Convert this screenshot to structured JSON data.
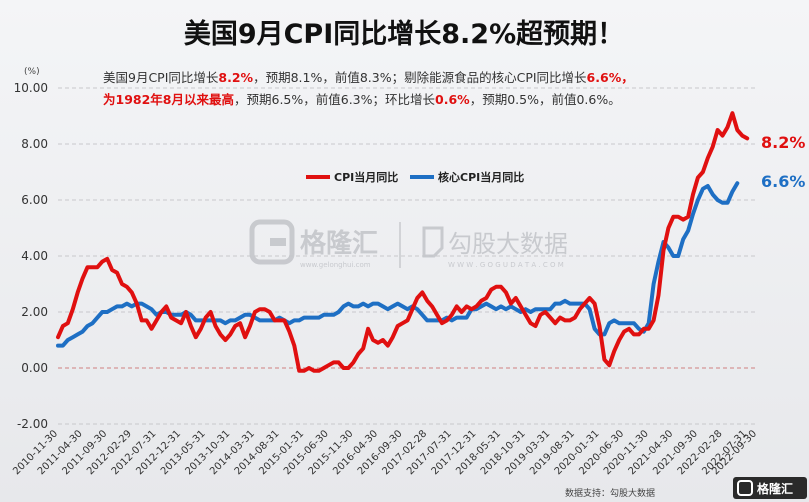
{
  "chart_data": {
    "type": "line",
    "title": "美国9月CPI同比增长8.2%超预期！",
    "yunit": "(%)",
    "ylim": [
      -2,
      10
    ],
    "yticks": [
      "10.00",
      "8.00",
      "6.00",
      "4.00",
      "2.00",
      "0.00",
      "-2.00"
    ],
    "ytick_values": [
      10,
      8,
      6,
      4,
      2,
      0,
      -2
    ],
    "grid": "horizontal-dashed",
    "legend_position": "top-center",
    "x_tick_labels": [
      "2010-11-30",
      "2011-04-30",
      "2011-09-30",
      "2012-02-29",
      "2012-07-31",
      "2012-12-31",
      "2013-05-31",
      "2013-10-31",
      "2014-03-31",
      "2014-08-31",
      "2015-01-31",
      "2015-06-30",
      "2015-11-30",
      "2016-04-30",
      "2016-09-30",
      "2017-02-28",
      "2017-07-31",
      "2017-12-31",
      "2018-05-31",
      "2018-10-31",
      "2019-03-31",
      "2019-08-31",
      "2020-01-31",
      "2020-06-30",
      "2020-11-30",
      "2021-04-30",
      "2021-09-30",
      "2022-02-28",
      "2022-07-31",
      "2022-09-30"
    ],
    "x_tick_index": [
      0,
      5,
      10,
      15,
      20,
      25,
      30,
      35,
      40,
      45,
      50,
      55,
      60,
      65,
      70,
      75,
      80,
      85,
      90,
      95,
      100,
      105,
      110,
      115,
      120,
      125,
      130,
      135,
      140,
      142
    ],
    "x_count": 143,
    "series": [
      {
        "name": "CPI当月同比",
        "color": "#e01010",
        "end_label": "8.2%",
        "values": [
          1.1,
          1.5,
          1.6,
          2.1,
          2.7,
          3.2,
          3.6,
          3.6,
          3.6,
          3.8,
          3.9,
          3.5,
          3.4,
          3.0,
          2.9,
          2.7,
          2.3,
          1.7,
          1.7,
          1.4,
          1.7,
          2.0,
          2.2,
          1.8,
          1.7,
          1.6,
          2.0,
          1.5,
          1.1,
          1.4,
          1.8,
          2.0,
          1.5,
          1.2,
          1.0,
          1.2,
          1.5,
          1.6,
          1.1,
          1.5,
          2.0,
          2.1,
          2.1,
          2.0,
          1.7,
          1.7,
          1.7,
          1.3,
          0.8,
          -0.1,
          -0.1,
          0.0,
          -0.1,
          -0.1,
          0.0,
          0.1,
          0.2,
          0.2,
          0.0,
          0.0,
          0.2,
          0.5,
          0.7,
          1.4,
          1.0,
          0.9,
          1.0,
          0.8,
          1.1,
          1.5,
          1.6,
          1.7,
          2.1,
          2.5,
          2.7,
          2.4,
          2.2,
          1.9,
          1.6,
          1.7,
          1.9,
          2.2,
          2.0,
          2.2,
          2.1,
          2.2,
          2.4,
          2.5,
          2.8,
          2.9,
          2.9,
          2.7,
          2.3,
          2.5,
          2.2,
          1.9,
          1.6,
          1.5,
          1.9,
          2.0,
          1.8,
          1.6,
          1.8,
          1.7,
          1.7,
          1.8,
          2.1,
          2.3,
          2.5,
          2.3,
          1.5,
          0.3,
          0.1,
          0.6,
          1.0,
          1.3,
          1.4,
          1.2,
          1.2,
          1.4,
          1.4,
          1.7,
          2.6,
          4.2,
          5.0,
          5.4,
          5.4,
          5.3,
          5.4,
          6.2,
          6.8,
          7.0,
          7.5,
          7.9,
          8.5,
          8.3,
          8.6,
          9.1,
          8.5,
          8.3,
          8.2
        ]
      },
      {
        "name": "核心CPI当月同比",
        "color": "#1e6fc4",
        "end_label": "6.6%",
        "values": [
          0.8,
          0.8,
          1.0,
          1.1,
          1.2,
          1.3,
          1.5,
          1.6,
          1.8,
          2.0,
          2.0,
          2.1,
          2.2,
          2.2,
          2.3,
          2.2,
          2.3,
          2.3,
          2.2,
          2.1,
          1.9,
          2.0,
          2.0,
          1.9,
          1.9,
          1.9,
          2.0,
          1.9,
          1.7,
          1.7,
          1.7,
          1.7,
          1.7,
          1.7,
          1.6,
          1.7,
          1.7,
          1.8,
          1.9,
          1.9,
          1.8,
          1.7,
          1.7,
          1.7,
          1.7,
          1.8,
          1.7,
          1.6,
          1.7,
          1.7,
          1.8,
          1.8,
          1.8,
          1.8,
          1.9,
          1.9,
          1.9,
          2.0,
          2.2,
          2.3,
          2.2,
          2.2,
          2.3,
          2.2,
          2.3,
          2.3,
          2.2,
          2.1,
          2.2,
          2.3,
          2.2,
          2.1,
          2.2,
          2.1,
          1.9,
          1.7,
          1.7,
          1.7,
          1.7,
          1.8,
          1.7,
          1.8,
          1.8,
          1.8,
          2.1,
          2.1,
          2.2,
          2.3,
          2.2,
          2.1,
          2.2,
          2.1,
          2.2,
          2.1,
          2.0,
          2.1,
          2.0,
          2.1,
          2.1,
          2.1,
          2.1,
          2.3,
          2.3,
          2.4,
          2.3,
          2.3,
          2.3,
          2.3,
          2.1,
          1.4,
          1.2,
          1.2,
          1.6,
          1.7,
          1.6,
          1.6,
          1.6,
          1.6,
          1.4,
          1.3,
          1.6,
          3.0,
          3.8,
          4.5,
          4.3,
          4.0,
          4.0,
          4.6,
          4.9,
          5.5,
          6.0,
          6.4,
          6.5,
          6.2,
          6.0,
          5.9,
          5.9,
          6.3,
          6.6
        ]
      }
    ]
  },
  "annotation": {
    "line1": [
      {
        "text": "美国9月CPI同比增长",
        "hl": false
      },
      {
        "text": "8.2%",
        "hl": true
      },
      {
        "text": "，预期8.1%，前值8.3%；剔除能源食品的核心CPI同比增长",
        "hl": false
      },
      {
        "text": "6.6%",
        "hl": true
      },
      {
        "text": "，",
        "hl": true
      }
    ],
    "line2": [
      {
        "text": "为1982年8月以来最高",
        "hl": true
      },
      {
        "text": "，预期6.5%，前值6.3%；环比增长",
        "hl": false
      },
      {
        "text": "0.6%",
        "hl": true
      },
      {
        "text": "，预期0.5%，前值0.6%。",
        "hl": false
      }
    ]
  },
  "watermark": {
    "brand": "格隆汇",
    "brand_url": "www.gelonghui.com",
    "product": "勾股大数据",
    "product_url": "W W W . G O G U D A T A . C O M",
    "corner": "格隆汇"
  },
  "source": "数据支持：勾股大数据"
}
